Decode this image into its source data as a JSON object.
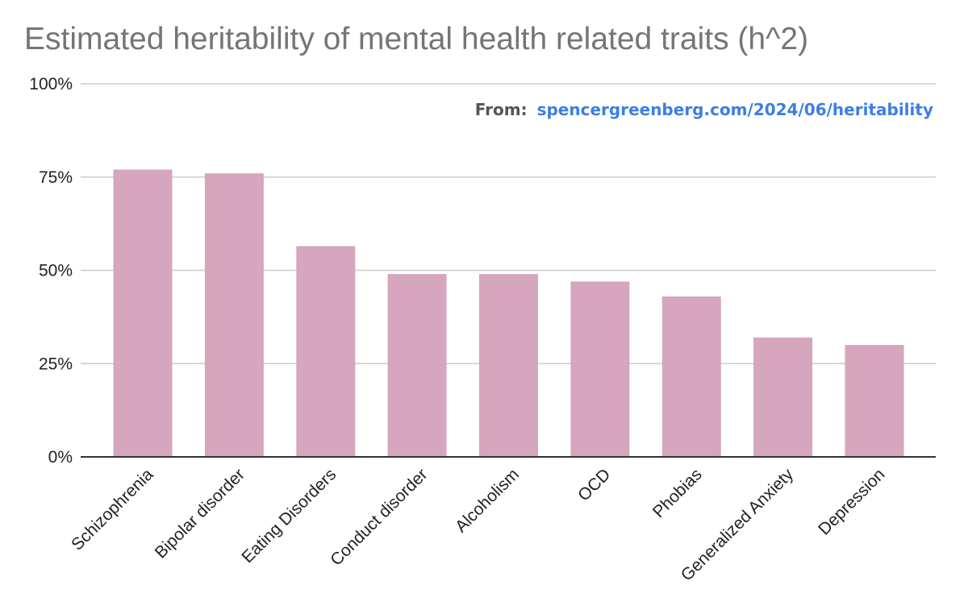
{
  "chart_data": {
    "type": "bar",
    "title": "Estimated heritability of mental health related traits (h^2)",
    "xlabel": "",
    "ylabel": "",
    "ylim": [
      0,
      100
    ],
    "yticks": [
      0,
      25,
      50,
      75,
      100
    ],
    "ytick_labels": [
      "0%",
      "25%",
      "50%",
      "75%",
      "100%"
    ],
    "grid": true,
    "categories": [
      "Schizophrenia",
      "Bipolar disorder",
      "Eating Disorders",
      "Conduct disorder",
      "Alcoholism",
      "OCD",
      "Phobias",
      "Generalized Anxiety",
      "Depression"
    ],
    "values": [
      77,
      76,
      56.5,
      49,
      49,
      47,
      43,
      32,
      30
    ],
    "bar_color": "#d5a6bd",
    "annotation": {
      "prefix": "From:",
      "text": "spencergreenberg.com/2024/06/heritability"
    }
  }
}
